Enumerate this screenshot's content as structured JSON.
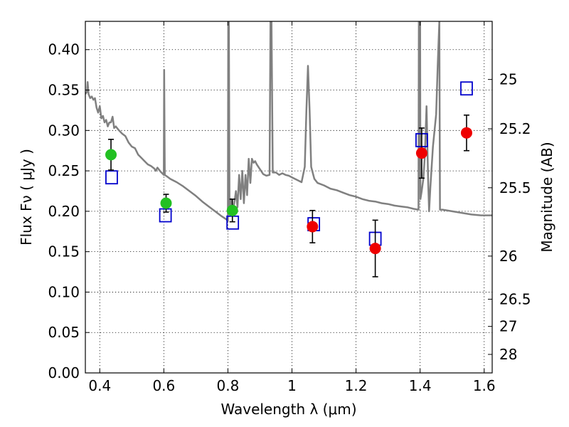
{
  "chart_data": {
    "type": "scatter",
    "xlabel": "Wavelength  λ (μm)",
    "ylabel": "Flux  Fν  ( μJy )",
    "y2label": "Magnitude (AB)",
    "xlim": [
      0.355,
      1.625
    ],
    "ylim": [
      0.0,
      0.435
    ],
    "grid": true,
    "x_ticks": [
      0.4,
      0.6,
      0.8,
      1.0,
      1.2,
      1.4,
      1.6
    ],
    "x_tick_labels": [
      "0.4",
      "0.6",
      "0.8",
      "1",
      "1.2",
      "1.4",
      "1.6"
    ],
    "y_ticks": [
      0.0,
      0.05,
      0.1,
      0.15,
      0.2,
      0.25,
      0.3,
      0.35,
      0.4
    ],
    "y_tick_labels": [
      "0.00",
      "0.05",
      "0.10",
      "0.15",
      "0.20",
      "0.25",
      "0.30",
      "0.35",
      "0.40"
    ],
    "y2_tick_labels": [
      "25",
      "25.2",
      "25.5",
      "26",
      "26.5",
      "27",
      "28"
    ],
    "colors": {
      "spectrum": "#808080",
      "green_points": "#22c022",
      "red_points": "#ee0000",
      "model_squares": "#0000cc",
      "errorbar": "#000000"
    },
    "series": [
      {
        "kind": "spectrum",
        "points": [
          [
            0.355,
            0.345
          ],
          [
            0.36,
            0.348
          ],
          [
            0.362,
            0.36
          ],
          [
            0.365,
            0.345
          ],
          [
            0.37,
            0.34
          ],
          [
            0.375,
            0.342
          ],
          [
            0.38,
            0.338
          ],
          [
            0.385,
            0.34
          ],
          [
            0.39,
            0.328
          ],
          [
            0.395,
            0.322
          ],
          [
            0.4,
            0.33
          ],
          [
            0.405,
            0.315
          ],
          [
            0.41,
            0.318
          ],
          [
            0.415,
            0.31
          ],
          [
            0.42,
            0.313
          ],
          [
            0.425,
            0.305
          ],
          [
            0.43,
            0.31
          ],
          [
            0.435,
            0.31
          ],
          [
            0.44,
            0.317
          ],
          [
            0.445,
            0.303
          ],
          [
            0.45,
            0.305
          ],
          [
            0.46,
            0.3
          ],
          [
            0.47,
            0.296
          ],
          [
            0.48,
            0.293
          ],
          [
            0.49,
            0.285
          ],
          [
            0.5,
            0.28
          ],
          [
            0.51,
            0.278
          ],
          [
            0.52,
            0.27
          ],
          [
            0.53,
            0.266
          ],
          [
            0.54,
            0.262
          ],
          [
            0.55,
            0.258
          ],
          [
            0.56,
            0.256
          ],
          [
            0.57,
            0.253
          ],
          [
            0.575,
            0.25
          ],
          [
            0.58,
            0.254
          ],
          [
            0.59,
            0.249
          ],
          [
            0.6,
            0.245
          ],
          [
            0.601,
            0.375
          ],
          [
            0.603,
            0.245
          ],
          [
            0.61,
            0.243
          ],
          [
            0.62,
            0.24
          ],
          [
            0.64,
            0.236
          ],
          [
            0.66,
            0.231
          ],
          [
            0.68,
            0.225
          ],
          [
            0.7,
            0.219
          ],
          [
            0.72,
            0.212
          ],
          [
            0.74,
            0.206
          ],
          [
            0.76,
            0.2
          ],
          [
            0.78,
            0.194
          ],
          [
            0.795,
            0.19
          ],
          [
            0.8,
            0.188
          ],
          [
            0.801,
            0.435
          ],
          [
            0.803,
            0.435
          ],
          [
            0.805,
            0.2
          ],
          [
            0.81,
            0.215
          ],
          [
            0.815,
            0.2
          ],
          [
            0.82,
            0.21
          ],
          [
            0.825,
            0.225
          ],
          [
            0.83,
            0.205
          ],
          [
            0.835,
            0.245
          ],
          [
            0.84,
            0.215
          ],
          [
            0.845,
            0.25
          ],
          [
            0.85,
            0.21
          ],
          [
            0.855,
            0.245
          ],
          [
            0.86,
            0.22
          ],
          [
            0.865,
            0.265
          ],
          [
            0.87,
            0.235
          ],
          [
            0.875,
            0.265
          ],
          [
            0.88,
            0.26
          ],
          [
            0.885,
            0.262
          ],
          [
            0.89,
            0.258
          ],
          [
            0.9,
            0.252
          ],
          [
            0.91,
            0.246
          ],
          [
            0.92,
            0.244
          ],
          [
            0.93,
            0.245
          ],
          [
            0.933,
            0.435
          ],
          [
            0.936,
            0.435
          ],
          [
            0.94,
            0.248
          ],
          [
            0.95,
            0.248
          ],
          [
            0.96,
            0.245
          ],
          [
            0.97,
            0.247
          ],
          [
            0.98,
            0.245
          ],
          [
            0.99,
            0.244
          ],
          [
            1.0,
            0.242
          ],
          [
            1.02,
            0.238
          ],
          [
            1.03,
            0.236
          ],
          [
            1.04,
            0.255
          ],
          [
            1.045,
            0.325
          ],
          [
            1.05,
            0.38
          ],
          [
            1.055,
            0.325
          ],
          [
            1.06,
            0.255
          ],
          [
            1.07,
            0.24
          ],
          [
            1.08,
            0.235
          ],
          [
            1.1,
            0.232
          ],
          [
            1.12,
            0.228
          ],
          [
            1.14,
            0.226
          ],
          [
            1.16,
            0.223
          ],
          [
            1.18,
            0.22
          ],
          [
            1.2,
            0.218
          ],
          [
            1.22,
            0.215
          ],
          [
            1.24,
            0.213
          ],
          [
            1.26,
            0.212
          ],
          [
            1.28,
            0.21
          ],
          [
            1.3,
            0.209
          ],
          [
            1.32,
            0.207
          ],
          [
            1.34,
            0.206
          ],
          [
            1.36,
            0.205
          ],
          [
            1.38,
            0.203
          ],
          [
            1.395,
            0.202
          ],
          [
            1.396,
            0.435
          ],
          [
            1.4,
            0.435
          ],
          [
            1.401,
            0.215
          ],
          [
            1.405,
            0.225
          ],
          [
            1.41,
            0.24
          ],
          [
            1.415,
            0.27
          ],
          [
            1.42,
            0.33
          ],
          [
            1.425,
            0.24
          ],
          [
            1.428,
            0.2
          ],
          [
            1.432,
            0.23
          ],
          [
            1.44,
            0.28
          ],
          [
            1.45,
            0.32
          ],
          [
            1.455,
            0.38
          ],
          [
            1.46,
            0.435
          ],
          [
            1.462,
            0.202
          ],
          [
            1.47,
            0.202
          ],
          [
            1.5,
            0.2
          ],
          [
            1.53,
            0.198
          ],
          [
            1.56,
            0.196
          ],
          [
            1.59,
            0.195
          ],
          [
            1.625,
            0.195
          ]
        ]
      },
      {
        "kind": "observed-green",
        "points": [
          {
            "x": 0.435,
            "y": 0.27,
            "yerr": 0.019
          },
          {
            "x": 0.607,
            "y": 0.21,
            "yerr": 0.011
          },
          {
            "x": 0.814,
            "y": 0.201,
            "yerr": 0.014
          }
        ]
      },
      {
        "kind": "observed-red",
        "points": [
          {
            "x": 1.064,
            "y": 0.181,
            "yerr": 0.02
          },
          {
            "x": 1.26,
            "y": 0.154,
            "yerr": 0.035
          },
          {
            "x": 1.405,
            "y": 0.272,
            "yerr": 0.031
          },
          {
            "x": 1.545,
            "y": 0.297,
            "yerr": 0.022
          }
        ]
      },
      {
        "kind": "model-squares",
        "points": [
          {
            "x": 0.437,
            "y": 0.242
          },
          {
            "x": 0.605,
            "y": 0.195
          },
          {
            "x": 0.815,
            "y": 0.186
          },
          {
            "x": 1.068,
            "y": 0.184
          },
          {
            "x": 1.26,
            "y": 0.166
          },
          {
            "x": 1.405,
            "y": 0.288
          },
          {
            "x": 1.545,
            "y": 0.352
          }
        ]
      }
    ]
  }
}
